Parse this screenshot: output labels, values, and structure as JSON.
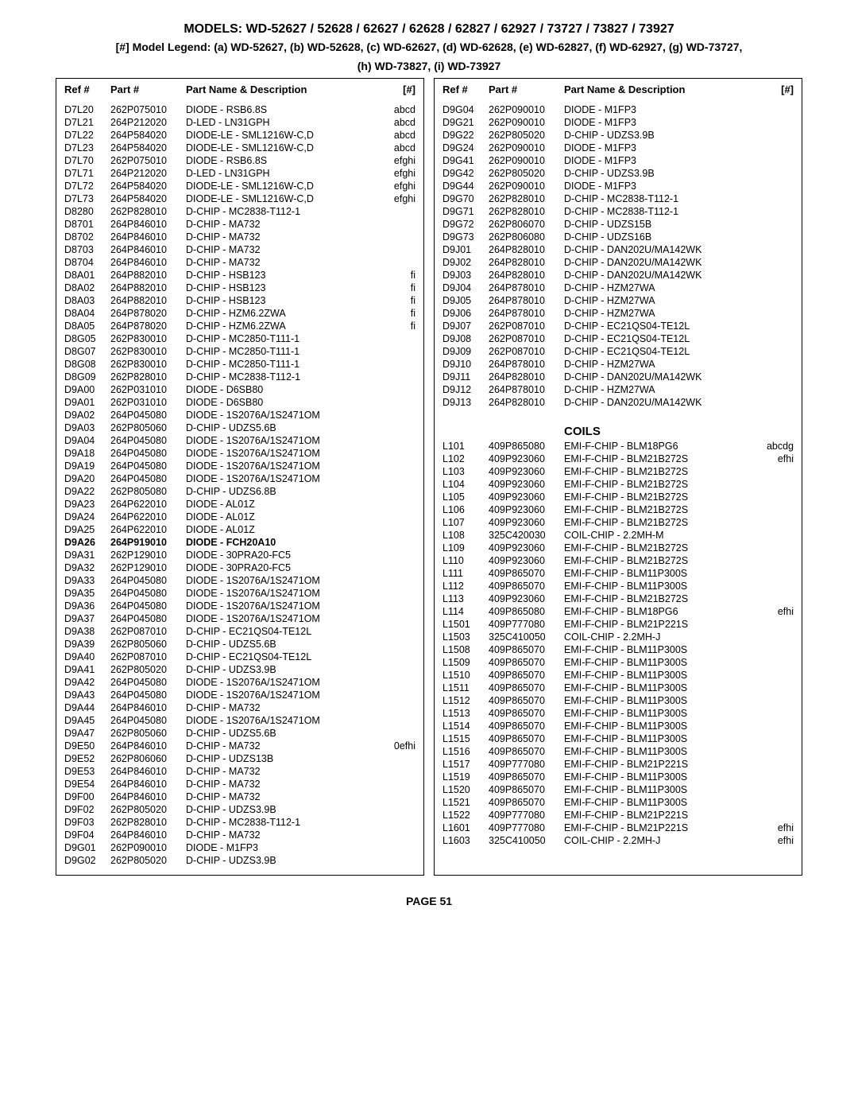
{
  "header_title": "MODELS: WD-52627 / 52628 / 62627 / 62628 / 62827 / 62927 / 73727 / 73827 / 73927",
  "header_legend_1": "[#] Model Legend:  (a) WD-52627, (b) WD-52628, (c) WD-62627, (d) WD-62628, (e) WD-62827, (f) WD-62927, (g) WD-73727,",
  "header_legend_2": "(h) WD-73827, (i) WD-73927",
  "page_number": "PAGE 51",
  "col_headers": {
    "ref": "Ref #",
    "part": "Part #",
    "desc": "Part Name & Description",
    "hash": "[#]"
  },
  "left_rows": [
    {
      "ref": "D7L20",
      "part": "262P075010",
      "desc": "DIODE - RSB6.8S",
      "hash": "abcd"
    },
    {
      "ref": "D7L21",
      "part": "264P212020",
      "desc": "D-LED - LN31GPH",
      "hash": "abcd"
    },
    {
      "ref": "D7L22",
      "part": "264P584020",
      "desc": "DIODE-LE - SML1216W-C,D",
      "hash": "abcd"
    },
    {
      "ref": "D7L23",
      "part": "264P584020",
      "desc": "DIODE-LE - SML1216W-C,D",
      "hash": "abcd"
    },
    {
      "ref": "D7L70",
      "part": "262P075010",
      "desc": "DIODE - RSB6.8S",
      "hash": "efghi"
    },
    {
      "ref": "D7L71",
      "part": "264P212020",
      "desc": "D-LED - LN31GPH",
      "hash": "efghi"
    },
    {
      "ref": "D7L72",
      "part": "264P584020",
      "desc": "DIODE-LE - SML1216W-C,D",
      "hash": "efghi"
    },
    {
      "ref": "D7L73",
      "part": "264P584020",
      "desc": "DIODE-LE - SML1216W-C,D",
      "hash": "efghi"
    },
    {
      "ref": "D8280",
      "part": "262P828010",
      "desc": "D-CHIP - MC2838-T112-1",
      "hash": ""
    },
    {
      "ref": "D8701",
      "part": "264P846010",
      "desc": "D-CHIP - MA732",
      "hash": ""
    },
    {
      "ref": "D8702",
      "part": "264P846010",
      "desc": "D-CHIP - MA732",
      "hash": ""
    },
    {
      "ref": "D8703",
      "part": "264P846010",
      "desc": "D-CHIP - MA732",
      "hash": ""
    },
    {
      "ref": "D8704",
      "part": "264P846010",
      "desc": "D-CHIP - MA732",
      "hash": ""
    },
    {
      "ref": "D8A01",
      "part": "264P882010",
      "desc": "D-CHIP - HSB123",
      "hash": "fi"
    },
    {
      "ref": "D8A02",
      "part": "264P882010",
      "desc": "D-CHIP - HSB123",
      "hash": "fi"
    },
    {
      "ref": "D8A03",
      "part": "264P882010",
      "desc": "D-CHIP - HSB123",
      "hash": "fi"
    },
    {
      "ref": "D8A04",
      "part": "264P878020",
      "desc": "D-CHIP - HZM6.2ZWA",
      "hash": "fi"
    },
    {
      "ref": "D8A05",
      "part": "264P878020",
      "desc": "D-CHIP - HZM6.2ZWA",
      "hash": "fi"
    },
    {
      "ref": "D8G05",
      "part": "262P830010",
      "desc": "D-CHIP - MC2850-T111-1",
      "hash": ""
    },
    {
      "ref": "D8G07",
      "part": "262P830010",
      "desc": "D-CHIP - MC2850-T111-1",
      "hash": ""
    },
    {
      "ref": "D8G08",
      "part": "262P830010",
      "desc": "D-CHIP - MC2850-T111-1",
      "hash": ""
    },
    {
      "ref": "D8G09",
      "part": "262P828010",
      "desc": "D-CHIP - MC2838-T112-1",
      "hash": ""
    },
    {
      "ref": "D9A00",
      "part": "262P031010",
      "desc": "DIODE - D6SB80",
      "hash": ""
    },
    {
      "ref": "D9A01",
      "part": "262P031010",
      "desc": "DIODE - D6SB80",
      "hash": ""
    },
    {
      "ref": "D9A02",
      "part": "264P045080",
      "desc": "DIODE - 1S2076A/1S2471OM",
      "hash": ""
    },
    {
      "ref": "D9A03",
      "part": "262P805060",
      "desc": "D-CHIP -  UDZS5.6B",
      "hash": ""
    },
    {
      "ref": "D9A04",
      "part": "264P045080",
      "desc": "DIODE - 1S2076A/1S2471OM",
      "hash": ""
    },
    {
      "ref": "D9A18",
      "part": "264P045080",
      "desc": "DIODE - 1S2076A/1S2471OM",
      "hash": ""
    },
    {
      "ref": "D9A19",
      "part": "264P045080",
      "desc": "DIODE - 1S2076A/1S2471OM",
      "hash": ""
    },
    {
      "ref": "D9A20",
      "part": "264P045080",
      "desc": "DIODE - 1S2076A/1S2471OM",
      "hash": ""
    },
    {
      "ref": "D9A22",
      "part": "262P805080",
      "desc": "D-CHIP -  UDZS6.8B",
      "hash": ""
    },
    {
      "ref": "D9A23",
      "part": "264P622010",
      "desc": "DIODE - AL01Z",
      "hash": ""
    },
    {
      "ref": "D9A24",
      "part": "264P622010",
      "desc": "DIODE - AL01Z",
      "hash": ""
    },
    {
      "ref": "D9A25",
      "part": "264P622010",
      "desc": "DIODE - AL01Z",
      "hash": ""
    },
    {
      "ref": "D9A26",
      "part": "264P919010",
      "desc": "DIODE -  FCH20A10",
      "hash": "",
      "bold": true
    },
    {
      "ref": "D9A31",
      "part": "262P129010",
      "desc": "DIODE - 30PRA20-FC5",
      "hash": ""
    },
    {
      "ref": "D9A32",
      "part": "262P129010",
      "desc": "DIODE - 30PRA20-FC5",
      "hash": ""
    },
    {
      "ref": "D9A33",
      "part": "264P045080",
      "desc": "DIODE - 1S2076A/1S2471OM",
      "hash": ""
    },
    {
      "ref": "D9A35",
      "part": "264P045080",
      "desc": "DIODE - 1S2076A/1S2471OM",
      "hash": ""
    },
    {
      "ref": "D9A36",
      "part": "264P045080",
      "desc": "DIODE - 1S2076A/1S2471OM",
      "hash": ""
    },
    {
      "ref": "D9A37",
      "part": "264P045080",
      "desc": "DIODE - 1S2076A/1S2471OM",
      "hash": ""
    },
    {
      "ref": "D9A38",
      "part": "262P087010",
      "desc": "D-CHIP - EC21QS04-TE12L",
      "hash": ""
    },
    {
      "ref": "D9A39",
      "part": "262P805060",
      "desc": "D-CHIP -  UDZS5.6B",
      "hash": ""
    },
    {
      "ref": "D9A40",
      "part": "262P087010",
      "desc": "D-CHIP - EC21QS04-TE12L",
      "hash": ""
    },
    {
      "ref": "D9A41",
      "part": "262P805020",
      "desc": "D-CHIP -  UDZS3.9B",
      "hash": ""
    },
    {
      "ref": "D9A42",
      "part": "264P045080",
      "desc": "DIODE - 1S2076A/1S2471OM",
      "hash": ""
    },
    {
      "ref": "D9A43",
      "part": "264P045080",
      "desc": "DIODE - 1S2076A/1S2471OM",
      "hash": ""
    },
    {
      "ref": "D9A44",
      "part": "264P846010",
      "desc": "D-CHIP - MA732",
      "hash": ""
    },
    {
      "ref": "D9A45",
      "part": "264P045080",
      "desc": "DIODE - 1S2076A/1S2471OM",
      "hash": ""
    },
    {
      "ref": "D9A47",
      "part": "262P805060",
      "desc": "D-CHIP -  UDZS5.6B",
      "hash": ""
    },
    {
      "ref": "D9E50",
      "part": "264P846010",
      "desc": "D-CHIP - MA732",
      "hash": "0efhi"
    },
    {
      "ref": "D9E52",
      "part": "262P806060",
      "desc": "D-CHIP -  UDZS13B",
      "hash": ""
    },
    {
      "ref": "D9E53",
      "part": "264P846010",
      "desc": "D-CHIP - MA732",
      "hash": ""
    },
    {
      "ref": "D9E54",
      "part": "264P846010",
      "desc": "D-CHIP - MA732",
      "hash": ""
    },
    {
      "ref": "D9F00",
      "part": "264P846010",
      "desc": "D-CHIP - MA732",
      "hash": ""
    },
    {
      "ref": "D9F02",
      "part": "262P805020",
      "desc": "D-CHIP -  UDZS3.9B",
      "hash": ""
    },
    {
      "ref": "D9F03",
      "part": "262P828010",
      "desc": "D-CHIP - MC2838-T112-1",
      "hash": ""
    },
    {
      "ref": "D9F04",
      "part": "264P846010",
      "desc": "D-CHIP - MA732",
      "hash": ""
    },
    {
      "ref": "D9G01",
      "part": "262P090010",
      "desc": "DIODE - M1FP3",
      "hash": ""
    },
    {
      "ref": "D9G02",
      "part": "262P805020",
      "desc": "D-CHIP -  UDZS3.9B",
      "hash": ""
    }
  ],
  "right_rows_top": [
    {
      "ref": "D9G04",
      "part": "262P090010",
      "desc": "DIODE - M1FP3",
      "hash": ""
    },
    {
      "ref": "D9G21",
      "part": "262P090010",
      "desc": "DIODE - M1FP3",
      "hash": ""
    },
    {
      "ref": "D9G22",
      "part": "262P805020",
      "desc": "D-CHIP -  UDZS3.9B",
      "hash": ""
    },
    {
      "ref": "D9G24",
      "part": "262P090010",
      "desc": "DIODE - M1FP3",
      "hash": ""
    },
    {
      "ref": "D9G41",
      "part": "262P090010",
      "desc": "DIODE - M1FP3",
      "hash": ""
    },
    {
      "ref": "D9G42",
      "part": "262P805020",
      "desc": "D-CHIP -  UDZS3.9B",
      "hash": ""
    },
    {
      "ref": "D9G44",
      "part": "262P090010",
      "desc": "DIODE - M1FP3",
      "hash": ""
    },
    {
      "ref": "D9G70",
      "part": "262P828010",
      "desc": "D-CHIP - MC2838-T112-1",
      "hash": ""
    },
    {
      "ref": "D9G71",
      "part": "262P828010",
      "desc": "D-CHIP - MC2838-T112-1",
      "hash": ""
    },
    {
      "ref": "D9G72",
      "part": "262P806070",
      "desc": "D-CHIP -  UDZS15B",
      "hash": ""
    },
    {
      "ref": "D9G73",
      "part": "262P806080",
      "desc": "D-CHIP -  UDZS16B",
      "hash": ""
    },
    {
      "ref": "D9J01",
      "part": "264P828010",
      "desc": "D-CHIP - DAN202U/MA142WK",
      "hash": ""
    },
    {
      "ref": "D9J02",
      "part": "264P828010",
      "desc": "D-CHIP - DAN202U/MA142WK",
      "hash": ""
    },
    {
      "ref": "D9J03",
      "part": "264P828010",
      "desc": "D-CHIP - DAN202U/MA142WK",
      "hash": ""
    },
    {
      "ref": "D9J04",
      "part": "264P878010",
      "desc": "D-CHIP - HZM27WA",
      "hash": ""
    },
    {
      "ref": "D9J05",
      "part": "264P878010",
      "desc": "D-CHIP - HZM27WA",
      "hash": ""
    },
    {
      "ref": "D9J06",
      "part": "264P878010",
      "desc": "D-CHIP - HZM27WA",
      "hash": ""
    },
    {
      "ref": "D9J07",
      "part": "262P087010",
      "desc": "D-CHIP - EC21QS04-TE12L",
      "hash": ""
    },
    {
      "ref": "D9J08",
      "part": "262P087010",
      "desc": "D-CHIP - EC21QS04-TE12L",
      "hash": ""
    },
    {
      "ref": "D9J09",
      "part": "262P087010",
      "desc": "D-CHIP - EC21QS04-TE12L",
      "hash": ""
    },
    {
      "ref": "D9J10",
      "part": "264P878010",
      "desc": "D-CHIP - HZM27WA",
      "hash": ""
    },
    {
      "ref": "D9J11",
      "part": "264P828010",
      "desc": "D-CHIP - DAN202U/MA142WK",
      "hash": ""
    },
    {
      "ref": "D9J12",
      "part": "264P878010",
      "desc": "D-CHIP - HZM27WA",
      "hash": ""
    },
    {
      "ref": "D9J13",
      "part": "264P828010",
      "desc": "D-CHIP - DAN202U/MA142WK",
      "hash": ""
    }
  ],
  "coils_title": "COILS",
  "right_rows_coils": [
    {
      "ref": "L101",
      "part": "409P865080",
      "desc": "EMI-F-CHIP - BLM18PG6",
      "hash": "abcdg"
    },
    {
      "ref": "L102",
      "part": "409P923060",
      "desc": "EMI-F-CHIP - BLM21B272S",
      "hash": "efhi"
    },
    {
      "ref": "L103",
      "part": "409P923060",
      "desc": "EMI-F-CHIP - BLM21B272S",
      "hash": ""
    },
    {
      "ref": "L104",
      "part": "409P923060",
      "desc": "EMI-F-CHIP - BLM21B272S",
      "hash": ""
    },
    {
      "ref": "L105",
      "part": "409P923060",
      "desc": "EMI-F-CHIP - BLM21B272S",
      "hash": ""
    },
    {
      "ref": "L106",
      "part": "409P923060",
      "desc": "EMI-F-CHIP - BLM21B272S",
      "hash": ""
    },
    {
      "ref": "L107",
      "part": "409P923060",
      "desc": "EMI-F-CHIP - BLM21B272S",
      "hash": ""
    },
    {
      "ref": "L108",
      "part": "325C420030",
      "desc": "COIL-CHIP - 2.2MH-M",
      "hash": ""
    },
    {
      "ref": "L109",
      "part": "409P923060",
      "desc": "EMI-F-CHIP - BLM21B272S",
      "hash": ""
    },
    {
      "ref": "L110",
      "part": "409P923060",
      "desc": "EMI-F-CHIP - BLM21B272S",
      "hash": ""
    },
    {
      "ref": "L111",
      "part": "409P865070",
      "desc": "EMI-F-CHIP - BLM11P300S",
      "hash": ""
    },
    {
      "ref": "L112",
      "part": "409P865070",
      "desc": "EMI-F-CHIP - BLM11P300S",
      "hash": ""
    },
    {
      "ref": "L113",
      "part": "409P923060",
      "desc": "EMI-F-CHIP - BLM21B272S",
      "hash": ""
    },
    {
      "ref": "L114",
      "part": "409P865080",
      "desc": "EMI-F-CHIP - BLM18PG6",
      "hash": "efhi"
    },
    {
      "ref": "L1501",
      "part": "409P777080",
      "desc": "EMI-F-CHIP - BLM21P221S",
      "hash": ""
    },
    {
      "ref": "L1503",
      "part": "325C410050",
      "desc": "COIL-CHIP - 2.2MH-J",
      "hash": ""
    },
    {
      "ref": "L1508",
      "part": "409P865070",
      "desc": "EMI-F-CHIP - BLM11P300S",
      "hash": ""
    },
    {
      "ref": "L1509",
      "part": "409P865070",
      "desc": "EMI-F-CHIP - BLM11P300S",
      "hash": ""
    },
    {
      "ref": "L1510",
      "part": "409P865070",
      "desc": "EMI-F-CHIP - BLM11P300S",
      "hash": ""
    },
    {
      "ref": "L1511",
      "part": "409P865070",
      "desc": "EMI-F-CHIP - BLM11P300S",
      "hash": ""
    },
    {
      "ref": "L1512",
      "part": "409P865070",
      "desc": "EMI-F-CHIP - BLM11P300S",
      "hash": ""
    },
    {
      "ref": "L1513",
      "part": "409P865070",
      "desc": "EMI-F-CHIP - BLM11P300S",
      "hash": ""
    },
    {
      "ref": "L1514",
      "part": "409P865070",
      "desc": "EMI-F-CHIP - BLM11P300S",
      "hash": ""
    },
    {
      "ref": "L1515",
      "part": "409P865070",
      "desc": "EMI-F-CHIP - BLM11P300S",
      "hash": ""
    },
    {
      "ref": "L1516",
      "part": "409P865070",
      "desc": "EMI-F-CHIP - BLM11P300S",
      "hash": ""
    },
    {
      "ref": "L1517",
      "part": "409P777080",
      "desc": "EMI-F-CHIP - BLM21P221S",
      "hash": ""
    },
    {
      "ref": "L1519",
      "part": "409P865070",
      "desc": "EMI-F-CHIP - BLM11P300S",
      "hash": ""
    },
    {
      "ref": "L1520",
      "part": "409P865070",
      "desc": "EMI-F-CHIP - BLM11P300S",
      "hash": ""
    },
    {
      "ref": "L1521",
      "part": "409P865070",
      "desc": "EMI-F-CHIP - BLM11P300S",
      "hash": ""
    },
    {
      "ref": "L1522",
      "part": "409P777080",
      "desc": "EMI-F-CHIP - BLM21P221S",
      "hash": ""
    },
    {
      "ref": "L1601",
      "part": "409P777080",
      "desc": "EMI-F-CHIP - BLM21P221S",
      "hash": "efhi"
    },
    {
      "ref": "L1603",
      "part": "325C410050",
      "desc": "COIL-CHIP - 2.2MH-J",
      "hash": "efhi"
    }
  ]
}
